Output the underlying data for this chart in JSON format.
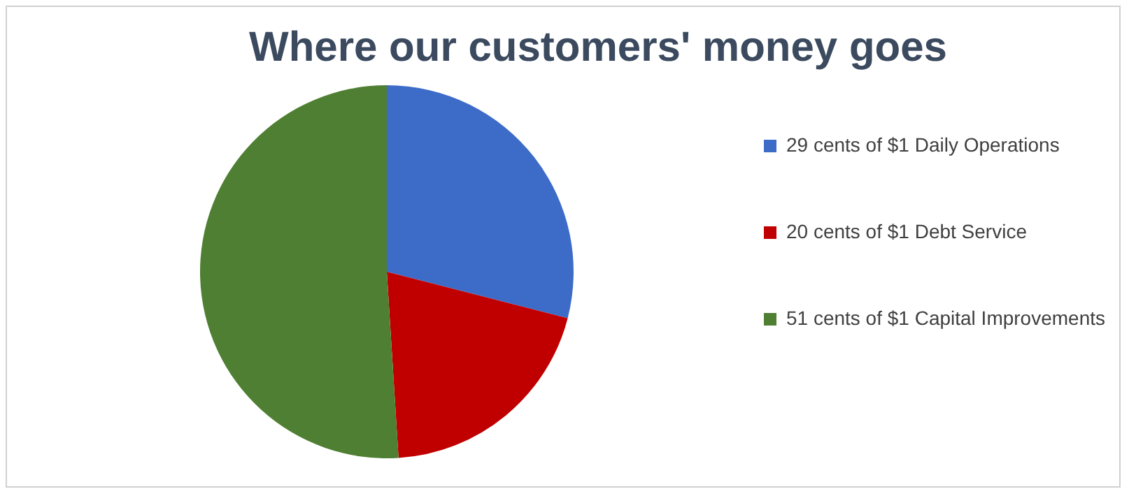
{
  "chart_data": {
    "type": "pie",
    "title": "Where our customers' money goes",
    "categories": [
      "29 cents of $1 Daily Operations",
      "20 cents of $1 Debt Service",
      "51 cents of $1 Capital Improvements"
    ],
    "values": [
      29,
      20,
      51
    ],
    "colors": [
      "#3d6cc8",
      "#c00000",
      "#4f7f33"
    ],
    "legend": "right"
  }
}
